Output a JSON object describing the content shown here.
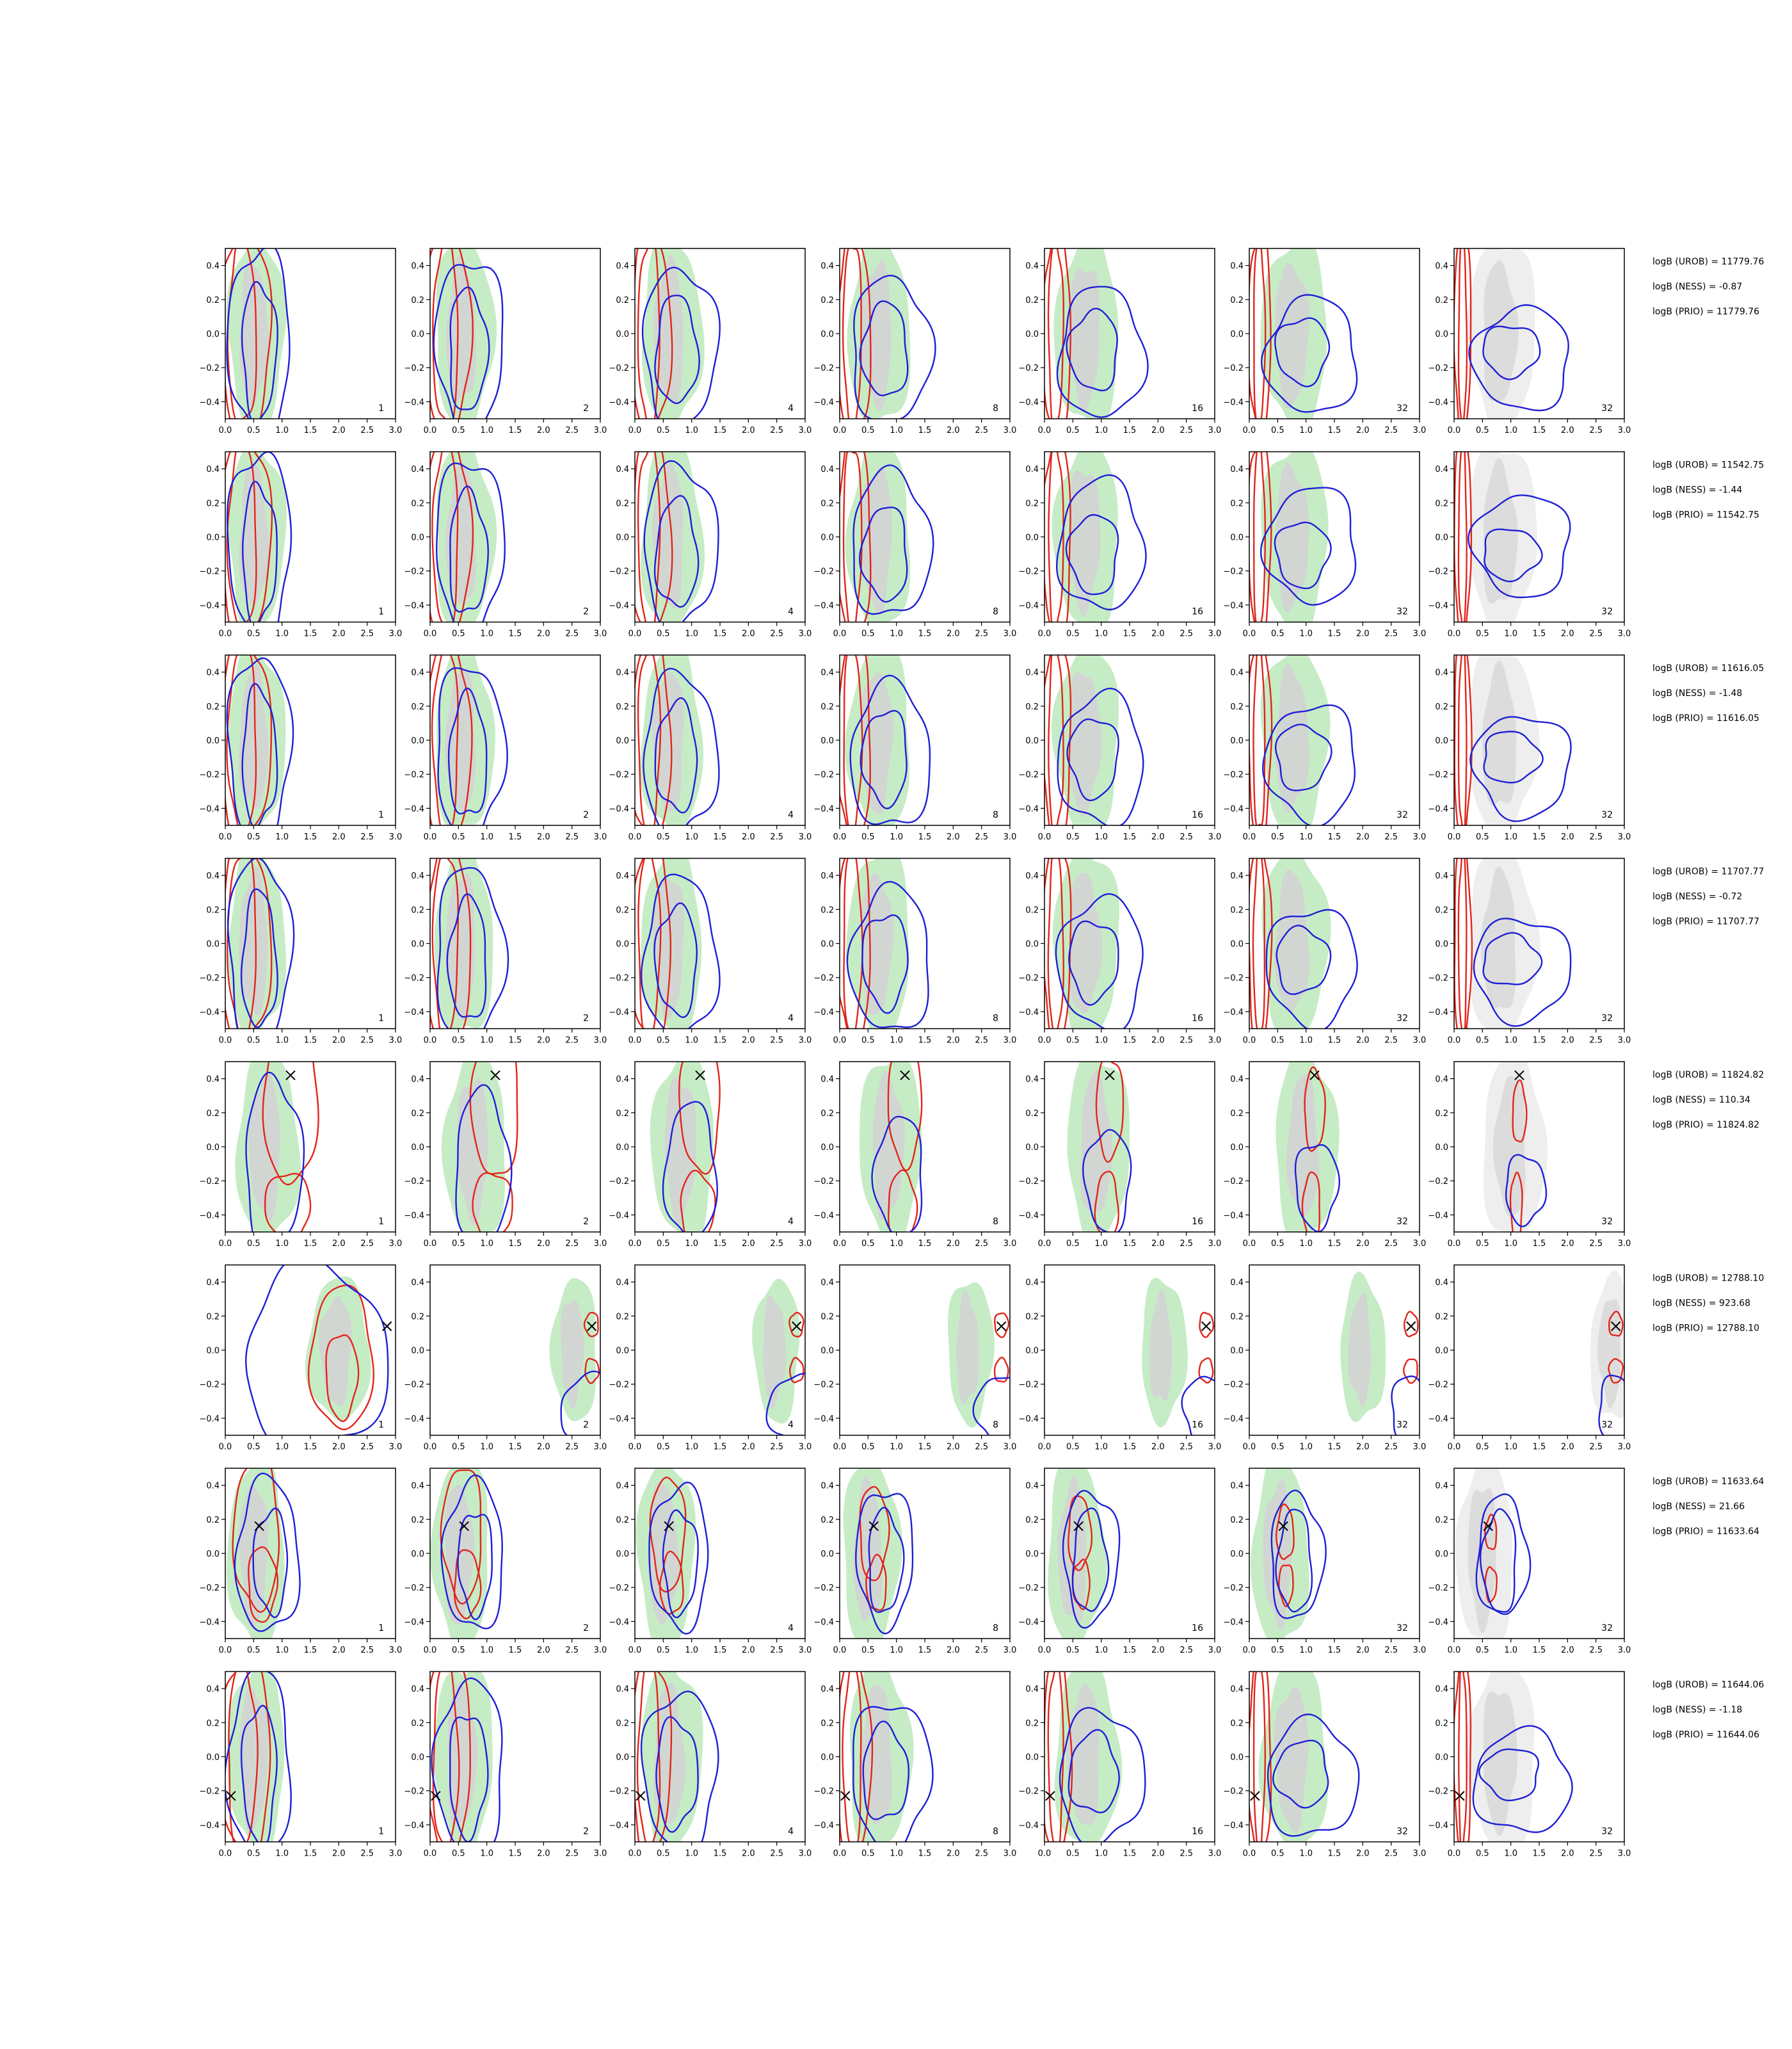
{
  "chart_data": {
    "type": "contour-grid",
    "rows": 8,
    "columns": 7,
    "column_labels": [
      "1",
      "2",
      "4",
      "8",
      "16",
      "32",
      "32"
    ],
    "xlim": [
      0,
      3.0
    ],
    "ylim": [
      -0.5,
      0.5
    ],
    "x_ticks": [
      "0.0",
      "0.5",
      "1.0",
      "1.5",
      "2.0",
      "2.5",
      "3.0"
    ],
    "y_ticks": [
      "0.4",
      "0.2",
      "0.0",
      "−0.2",
      "−0.4"
    ],
    "x_tick_values": [
      0,
      0.5,
      1.0,
      1.5,
      2.0,
      2.5,
      3.0
    ],
    "y_tick_values": [
      0.4,
      0.2,
      0.0,
      -0.2,
      -0.4
    ],
    "colors": {
      "prior_outer": "#c6ecc6",
      "prior_inner": "#d2d6d2",
      "reference_outer": "#eeeeee",
      "reference_inner": "#dcdcdc",
      "red_contour": "#e1261c",
      "blue_contour": "#1f1fd6",
      "marker": "#000000"
    },
    "markers": [
      null,
      null,
      null,
      null,
      {
        "x": 1.15,
        "y": 0.42
      },
      {
        "x": 2.85,
        "y": 0.14
      },
      {
        "x": 0.6,
        "y": 0.16
      },
      {
        "x": 0.1,
        "y": -0.23
      }
    ],
    "stats": [
      [
        "logB (UROB) = 11779.76",
        "logB (NESS) = -0.87",
        "logB (PRIO) = 11779.76"
      ],
      [
        "logB (UROB) = 11542.75",
        "logB (NESS) = -1.44",
        "logB (PRIO) = 11542.75"
      ],
      [
        "logB (UROB) = 11616.05",
        "logB (NESS) = -1.48",
        "logB (PRIO) = 11616.05"
      ],
      [
        "logB (UROB) = 11707.77",
        "logB (NESS) = -0.72",
        "logB (PRIO) = 11707.77"
      ],
      [
        "logB (UROB) = 11824.82",
        "logB (NESS) = 110.34",
        "logB (PRIO) = 11824.82"
      ],
      [
        "logB (UROB) = 12788.10",
        "logB (NESS) = 923.68",
        "logB (PRIO) = 12788.10"
      ],
      [
        "logB (UROB) = 11633.64",
        "logB (NESS) = 21.66",
        "logB (PRIO) = 11633.64"
      ],
      [
        "logB (UROB) = 11644.06",
        "logB (NESS) = -1.18",
        "logB (PRIO) = 11644.06"
      ]
    ]
  }
}
